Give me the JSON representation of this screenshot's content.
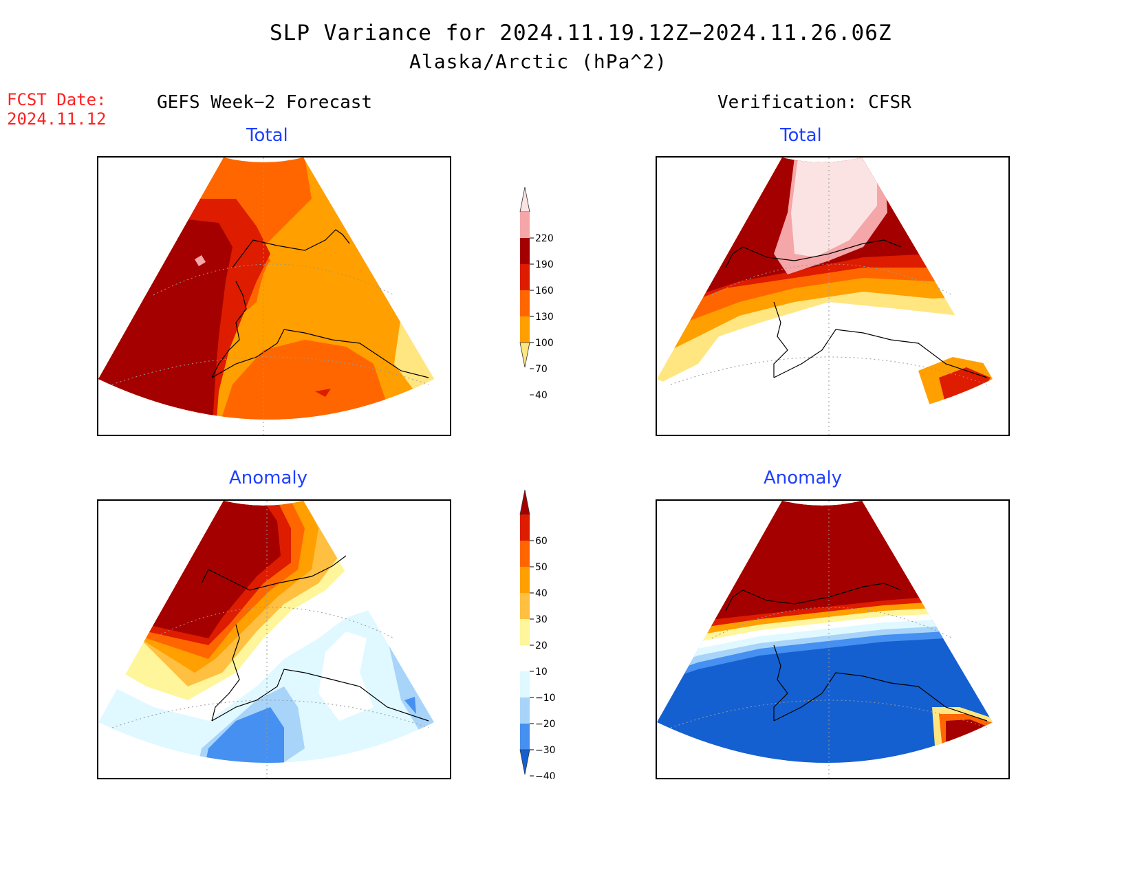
{
  "title": "SLP Variance for 2024.11.19.12Z−2024.11.26.06Z",
  "subtitle": "Alaska/Arctic (hPa^2)",
  "fcst_date_label": "FCST Date:",
  "fcst_date_value": "2024.11.12",
  "columns": {
    "left": "GEFS Week−2 Forecast",
    "right": "Verification: CFSR"
  },
  "panels": {
    "total_label": "Total",
    "anomaly_label": "Anomaly"
  },
  "colorbars": {
    "total": {
      "ticks": [
        "220",
        "190",
        "160",
        "130",
        "100",
        "70",
        "40"
      ],
      "colors": [
        "#fbe3e3",
        "#f4a6a8",
        "#a50000",
        "#dd1c00",
        "#ff6600",
        "#ff9f00",
        "#ffe680"
      ]
    },
    "anomaly": {
      "ticks": [
        "60",
        "50",
        "40",
        "30",
        "20",
        "10",
        "−10",
        "−20",
        "−30",
        "−40"
      ],
      "colors": [
        "#a50000",
        "#dd1c00",
        "#ff6600",
        "#ff9f00",
        "#ffbf40",
        "#fff59a",
        "#ffffff",
        "#e0f8ff",
        "#a8d4fa",
        "#4590f0",
        "#1560d0"
      ]
    }
  },
  "chart_data": {
    "type": "heatmap",
    "region": "Alaska/Arctic",
    "units": "hPa^2",
    "total_levels": [
      40,
      70,
      100,
      130,
      160,
      190,
      220
    ],
    "anomaly_levels": [
      -40,
      -30,
      -20,
      -10,
      10,
      20,
      30,
      40,
      50,
      60
    ]
  }
}
